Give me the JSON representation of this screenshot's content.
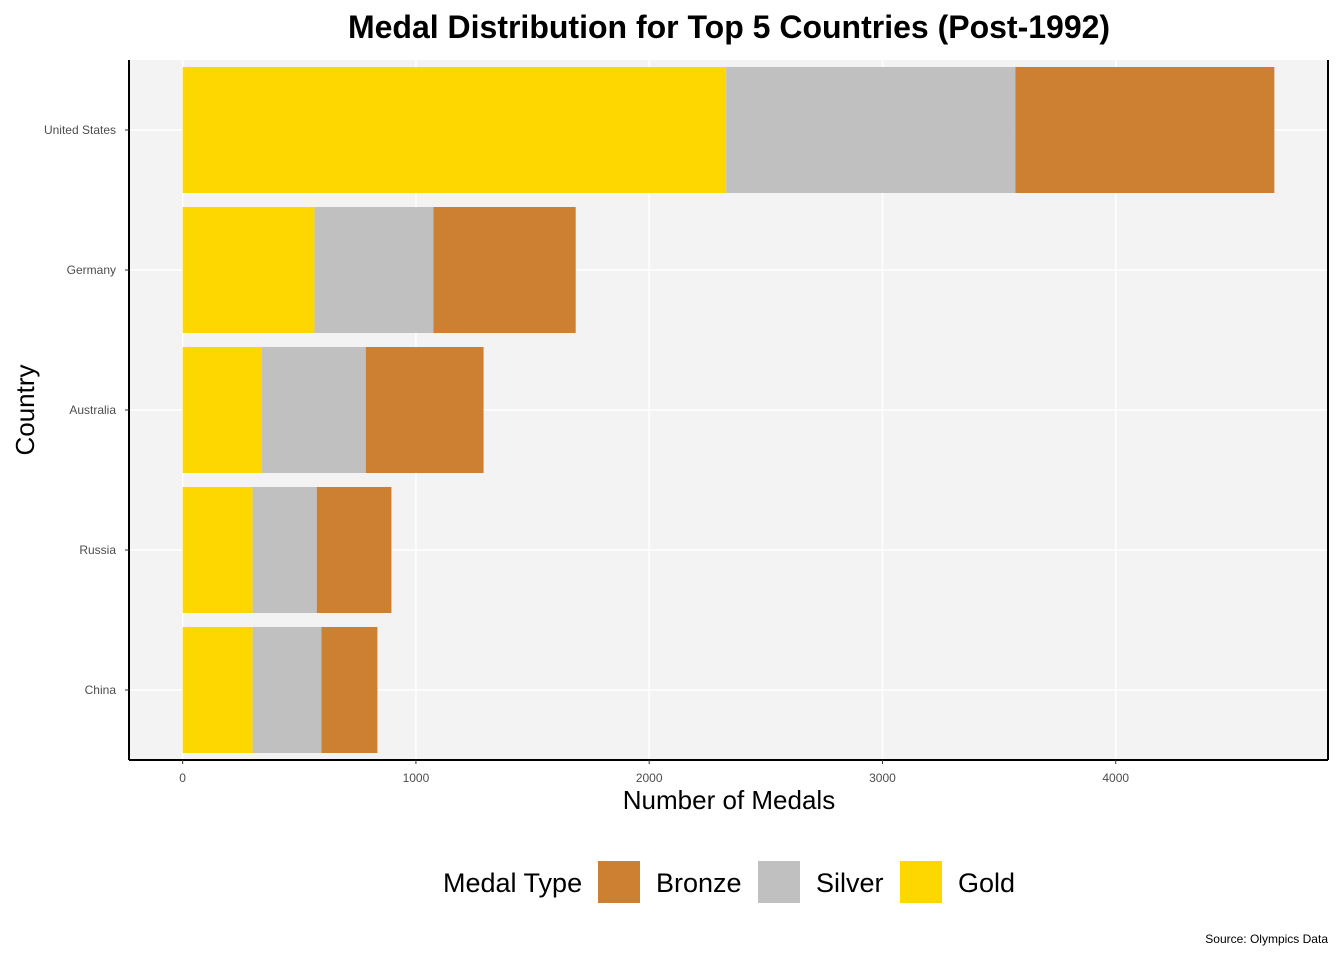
{
  "chart_data": {
    "type": "bar",
    "orientation": "horizontal",
    "stacked": true,
    "title": "Medal Distribution for Top 5 Countries (Post-1992)",
    "xlabel": "Number of Medals",
    "ylabel": "Country",
    "categories": [
      "United States",
      "Germany",
      "Australia",
      "Russia",
      "China"
    ],
    "series": [
      {
        "name": "Gold",
        "color": "#FFD700",
        "values": [
          2330,
          565,
          340,
          300,
          300
        ]
      },
      {
        "name": "Silver",
        "color": "#C0C0C0",
        "values": [
          1240,
          510,
          445,
          275,
          295
        ]
      },
      {
        "name": "Bronze",
        "color": "#CD7F32",
        "values": [
          1110,
          610,
          505,
          320,
          240
        ]
      }
    ],
    "xlim": [
      -230,
      4910
    ],
    "xticks": [
      0,
      1000,
      2000,
      3000,
      4000
    ],
    "grid": true,
    "legend": {
      "title": "Medal Type",
      "position": "bottom",
      "order": [
        "Bronze",
        "Silver",
        "Gold"
      ]
    },
    "caption": "Source: Olympics Data"
  },
  "colors": {
    "panel_background": "#F3F3F3",
    "grid": "#FFFFFF",
    "axis_line": "#000000"
  }
}
